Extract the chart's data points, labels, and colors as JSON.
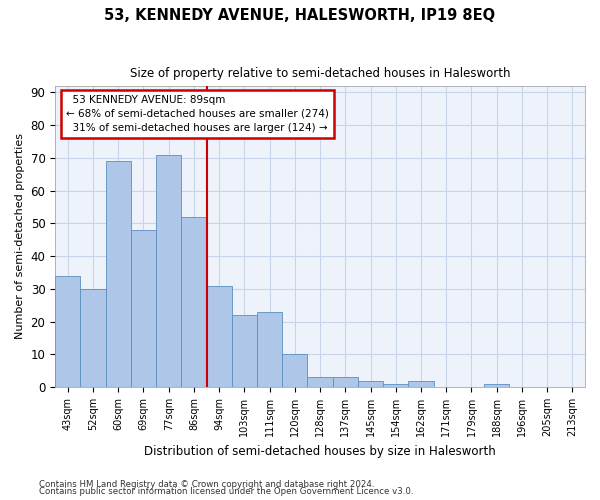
{
  "title": "53, KENNEDY AVENUE, HALESWORTH, IP19 8EQ",
  "subtitle": "Size of property relative to semi-detached houses in Halesworth",
  "xlabel": "Distribution of semi-detached houses by size in Halesworth",
  "ylabel": "Number of semi-detached properties",
  "footer1": "Contains HM Land Registry data © Crown copyright and database right 2024.",
  "footer2": "Contains public sector information licensed under the Open Government Licence v3.0.",
  "categories": [
    "43sqm",
    "52sqm",
    "60sqm",
    "69sqm",
    "77sqm",
    "86sqm",
    "94sqm",
    "103sqm",
    "111sqm",
    "120sqm",
    "128sqm",
    "137sqm",
    "145sqm",
    "154sqm",
    "162sqm",
    "171sqm",
    "179sqm",
    "188sqm",
    "196sqm",
    "205sqm",
    "213sqm"
  ],
  "values": [
    34,
    30,
    69,
    48,
    71,
    52,
    31,
    22,
    23,
    10,
    3,
    3,
    2,
    1,
    2,
    0,
    0,
    1,
    0,
    0,
    0
  ],
  "bar_color": "#aec6e8",
  "bar_edge_color": "#5a8fc0",
  "vline_color": "#cc0000",
  "annotation_box_edge_color": "#cc0000",
  "property_label": "53 KENNEDY AVENUE: 89sqm",
  "pct_smaller": 68,
  "pct_smaller_n": 274,
  "pct_larger": 31,
  "pct_larger_n": 124,
  "ylim": [
    0,
    92
  ],
  "yticks": [
    0,
    10,
    20,
    30,
    40,
    50,
    60,
    70,
    80,
    90
  ],
  "grid_color": "#c8d4e8",
  "bg_color": "#eef2fa",
  "vline_x": 5.5
}
